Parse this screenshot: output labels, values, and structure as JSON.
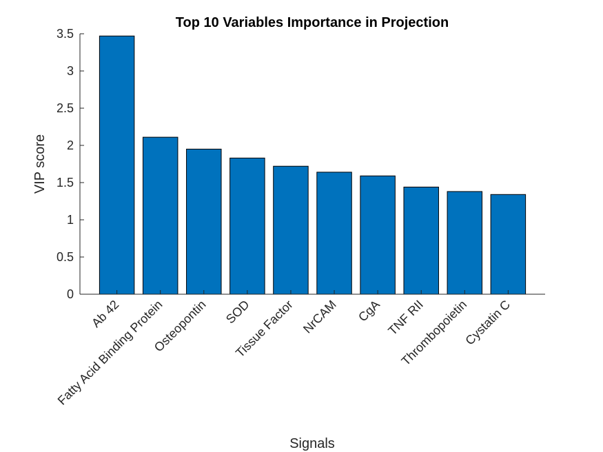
{
  "chart_data": {
    "type": "bar",
    "title": "Top 10 Variables Importance in Projection",
    "xlabel": "Signals",
    "ylabel": "VIP score",
    "categories": [
      "Ab 42",
      "Fatty Acid Binding Protein",
      "Osteopontin",
      "SOD",
      "Tissue Factor",
      "NrCAM",
      "CgA",
      "TNF RII",
      "Thrombopoietin",
      "Cystatin C"
    ],
    "values": [
      3.47,
      2.11,
      1.95,
      1.83,
      1.72,
      1.64,
      1.59,
      1.44,
      1.38,
      1.34
    ],
    "ylim": [
      0,
      3.5
    ],
    "yticks": [
      "0",
      "0.5",
      "1",
      "1.5",
      "2",
      "2.5",
      "3",
      "3.5"
    ],
    "grid": false,
    "colors": {
      "bar": "#0072BD",
      "bar_edge": "#000000",
      "axis": "#262626"
    }
  }
}
